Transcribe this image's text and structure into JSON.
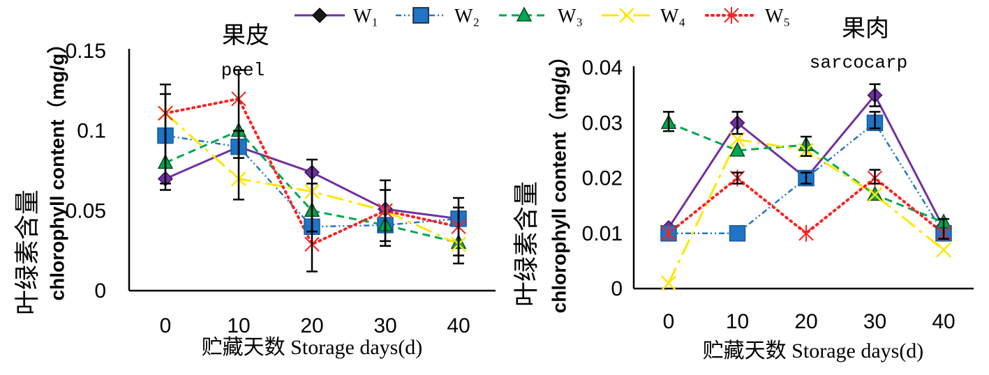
{
  "legend": {
    "position": "top",
    "items": [
      {
        "name": "W₁",
        "color": "#7030a0",
        "marker": "diamond",
        "line": "solid"
      },
      {
        "name": "W₂",
        "color": "#1f74c4",
        "marker": "square",
        "line": "dash-dot-dot"
      },
      {
        "name": "W₃",
        "color": "#00a651",
        "marker": "triangle",
        "line": "dashed"
      },
      {
        "name": "W₄",
        "color": "#ffe600",
        "marker": "x",
        "line": "long-dash-dot"
      },
      {
        "name": "W₅",
        "color": "#ff1f1f",
        "marker": "asterisk",
        "line": "dotted"
      }
    ]
  },
  "chart_data": [
    {
      "type": "line",
      "title": "果皮",
      "subtitle": "peel",
      "ylabel_cn": "叶绿素含量",
      "ylabel": "chlorophyll content（mg/g）",
      "xlabel": "贮藏天数 Storage days(d)",
      "x": [
        0,
        10,
        20,
        30,
        40
      ],
      "ylim": [
        0,
        0.15
      ],
      "yticks": [
        0,
        0.05,
        0.1,
        0.15
      ],
      "grid": false,
      "series": [
        {
          "values": [
            0.07,
            0.09,
            0.074,
            0.051,
            0.045
          ]
        },
        {
          "values": [
            0.097,
            0.09,
            0.04,
            0.041,
            0.045
          ]
        },
        {
          "values": [
            0.08,
            0.1,
            0.05,
            0.041,
            0.03
          ]
        },
        {
          "values": [
            0.111,
            0.07,
            0.062,
            0.05,
            0.029
          ]
        },
        {
          "values": [
            0.111,
            0.12,
            0.029,
            0.05,
            0.04
          ]
        }
      ],
      "error_bar_color": "#000000",
      "error_bars": [
        {
          "x": 0,
          "low": 0.063,
          "high": 0.129
        },
        {
          "x": 0,
          "low": 0.067,
          "high": 0.123
        },
        {
          "x": 10,
          "low": 0.057,
          "high": 0.138
        },
        {
          "x": 10,
          "low": 0.083,
          "high": 0.1
        },
        {
          "x": 20,
          "low": 0.012,
          "high": 0.082
        },
        {
          "x": 20,
          "low": 0.037,
          "high": 0.067
        },
        {
          "x": 30,
          "low": 0.028,
          "high": 0.069
        },
        {
          "x": 30,
          "low": 0.031,
          "high": 0.063
        },
        {
          "x": 40,
          "low": 0.017,
          "high": 0.058
        },
        {
          "x": 40,
          "low": 0.022,
          "high": 0.052
        }
      ]
    },
    {
      "type": "line",
      "title": "果肉",
      "subtitle": "sarcocarp",
      "ylabel_cn": "叶绿素含量",
      "ylabel": "chlorophyll content（mg/g）",
      "xlabel": "贮藏天数 Storage days(d)",
      "x": [
        0,
        10,
        20,
        30,
        40
      ],
      "ylim": [
        0,
        0.04
      ],
      "yticks": [
        0,
        0.01,
        0.02,
        0.03,
        0.04
      ],
      "grid": false,
      "series": [
        {
          "values": [
            0.011,
            0.03,
            0.02,
            0.035,
            0.011
          ]
        },
        {
          "values": [
            0.01,
            0.01,
            0.02,
            0.03,
            0.01
          ]
        },
        {
          "values": [
            0.03,
            0.025,
            0.026,
            0.017,
            0.012
          ]
        },
        {
          "values": [
            0.001,
            0.027,
            0.025,
            0.017,
            0.007
          ]
        },
        {
          "values": [
            0.01,
            0.02,
            0.01,
            0.02,
            0.01
          ]
        }
      ],
      "error_bar_color": "#000000",
      "error_bars": [
        {
          "x": 0,
          "low": 0.0285,
          "high": 0.032
        },
        {
          "x": 10,
          "low": 0.028,
          "high": 0.032
        },
        {
          "x": 10,
          "low": 0.019,
          "high": 0.021
        },
        {
          "x": 20,
          "low": 0.024,
          "high": 0.0275
        },
        {
          "x": 20,
          "low": 0.019,
          "high": 0.021
        },
        {
          "x": 30,
          "low": 0.033,
          "high": 0.037
        },
        {
          "x": 30,
          "low": 0.029,
          "high": 0.032
        },
        {
          "x": 30,
          "low": 0.019,
          "high": 0.0215
        },
        {
          "x": 40,
          "low": 0.009,
          "high": 0.0126
        }
      ]
    }
  ]
}
